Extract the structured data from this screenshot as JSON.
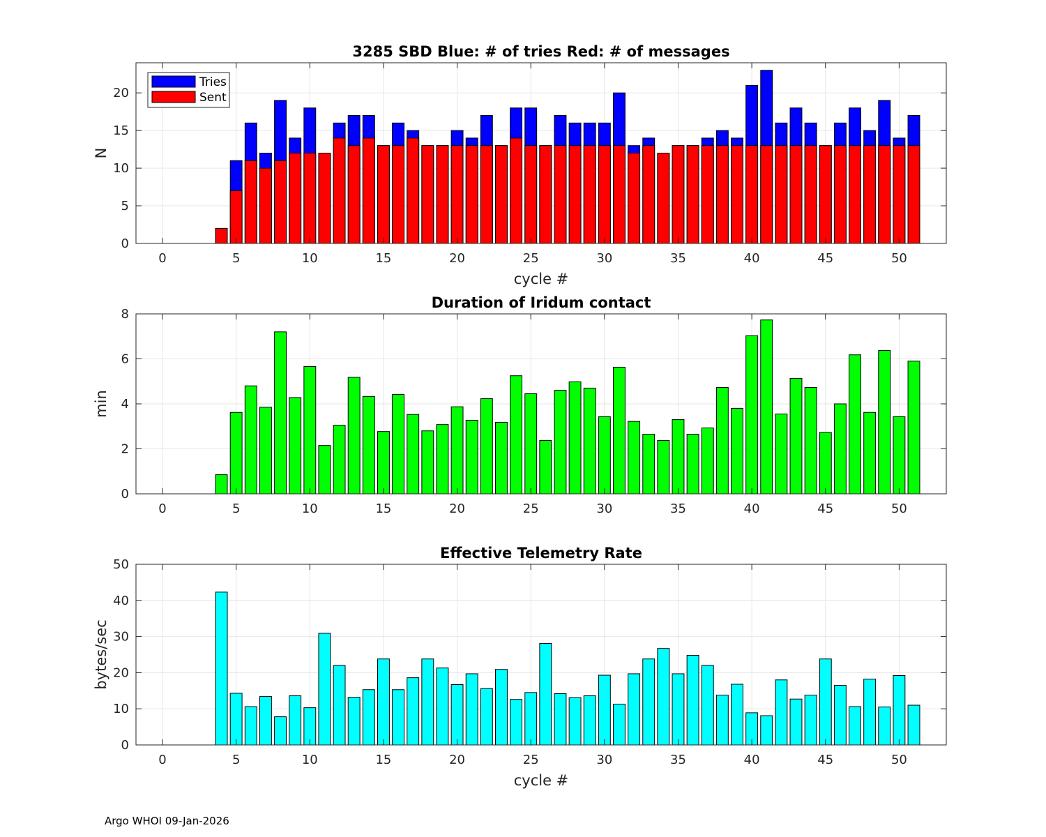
{
  "footer": "Argo WHOI 09-Jan-2026",
  "chart_data": [
    {
      "type": "bar",
      "title": "3285 SBD  Blue: # of tries   Red: # of messages",
      "xlabel": "cycle #",
      "ylabel": "N",
      "xlim": [
        -1.8,
        53.2
      ],
      "ylim": [
        0,
        24
      ],
      "xticks": [
        0,
        5,
        10,
        15,
        20,
        25,
        30,
        35,
        40,
        45,
        50
      ],
      "yticks": [
        0,
        5,
        10,
        15,
        20
      ],
      "grid": true,
      "legend": {
        "position": "top-left",
        "entries": [
          "Tries",
          "Sent"
        ]
      },
      "x": [
        4,
        5,
        6,
        7,
        8,
        9,
        10,
        11,
        12,
        13,
        14,
        15,
        16,
        17,
        18,
        19,
        20,
        21,
        22,
        23,
        24,
        25,
        26,
        27,
        28,
        29,
        30,
        31,
        32,
        33,
        34,
        35,
        36,
        37,
        38,
        39,
        40,
        41,
        42,
        43,
        44,
        45,
        46,
        47,
        48,
        49,
        50,
        51
      ],
      "series": [
        {
          "name": "Tries",
          "color": "#0000ff",
          "values": [
            2,
            11,
            16,
            12,
            19,
            14,
            18,
            12,
            16,
            17,
            17,
            13,
            16,
            15,
            13,
            13,
            15,
            14,
            17,
            13,
            18,
            18,
            13,
            17,
            16,
            16,
            16,
            20,
            13,
            14,
            12,
            13,
            13,
            14,
            15,
            14,
            21,
            23,
            16,
            18,
            16,
            13,
            16,
            18,
            15,
            19,
            14,
            17
          ]
        },
        {
          "name": "Sent",
          "color": "#ff0000",
          "values": [
            2,
            7,
            11,
            10,
            11,
            12,
            12,
            12,
            14,
            13,
            14,
            13,
            13,
            14,
            13,
            13,
            13,
            13,
            13,
            13,
            14,
            13,
            13,
            13,
            13,
            13,
            13,
            13,
            12,
            13,
            12,
            13,
            13,
            13,
            13,
            13,
            13,
            13,
            13,
            13,
            13,
            13,
            13,
            13,
            13,
            13,
            13,
            13
          ]
        }
      ]
    },
    {
      "type": "bar",
      "title": "Duration of Iridum contact",
      "xlabel": "",
      "ylabel": "min",
      "xlim": [
        -1.8,
        53.2
      ],
      "ylim": [
        0,
        8
      ],
      "xticks": [
        0,
        5,
        10,
        15,
        20,
        25,
        30,
        35,
        40,
        45,
        50
      ],
      "yticks": [
        0,
        2,
        4,
        6,
        8
      ],
      "grid": true,
      "x": [
        -1,
        4,
        5,
        6,
        7,
        8,
        9,
        10,
        11,
        12,
        13,
        14,
        15,
        16,
        17,
        18,
        19,
        20,
        21,
        22,
        23,
        24,
        25,
        26,
        27,
        28,
        29,
        30,
        31,
        32,
        33,
        34,
        35,
        36,
        37,
        38,
        39,
        40,
        41,
        42,
        43,
        44,
        45,
        46,
        47,
        48,
        49,
        50,
        51
      ],
      "series": [
        {
          "name": "Duration",
          "color": "#00ff00",
          "values": [
            0,
            0.85,
            3.62,
            4.8,
            3.85,
            7.2,
            4.28,
            5.66,
            2.15,
            3.05,
            5.18,
            4.33,
            2.77,
            4.42,
            3.53,
            2.8,
            3.08,
            3.87,
            3.27,
            4.23,
            3.18,
            5.25,
            4.45,
            2.37,
            4.6,
            4.98,
            4.7,
            3.43,
            5.63,
            3.22,
            2.65,
            2.37,
            3.3,
            2.65,
            2.93,
            4.73,
            3.8,
            7.03,
            7.73,
            3.55,
            5.13,
            4.73,
            2.73,
            4.0,
            6.18,
            3.62,
            6.37,
            3.43,
            5.9
          ]
        }
      ]
    },
    {
      "type": "bar",
      "title": "Effective Telemetry Rate",
      "xlabel": "cycle #",
      "ylabel": "bytes/sec",
      "xlim": [
        -1.8,
        53.2
      ],
      "ylim": [
        0,
        50
      ],
      "xticks": [
        0,
        5,
        10,
        15,
        20,
        25,
        30,
        35,
        40,
        45,
        50
      ],
      "yticks": [
        0,
        10,
        20,
        30,
        40,
        50
      ],
      "grid": true,
      "x": [
        4,
        5,
        6,
        7,
        8,
        9,
        10,
        11,
        12,
        13,
        14,
        15,
        16,
        17,
        18,
        19,
        20,
        21,
        22,
        23,
        24,
        25,
        26,
        27,
        28,
        29,
        30,
        31,
        32,
        33,
        34,
        35,
        36,
        37,
        38,
        39,
        40,
        41,
        42,
        43,
        44,
        45,
        46,
        47,
        48,
        49,
        50,
        51
      ],
      "series": [
        {
          "name": "Rate",
          "color": "#00ffff",
          "values": [
            42.3,
            14.3,
            10.6,
            13.4,
            7.8,
            13.6,
            10.3,
            30.9,
            22.0,
            13.2,
            15.3,
            23.8,
            15.3,
            18.6,
            23.8,
            21.3,
            16.7,
            19.7,
            15.6,
            20.9,
            12.6,
            14.5,
            28.1,
            14.2,
            13.1,
            13.6,
            19.3,
            11.3,
            19.7,
            23.8,
            26.7,
            19.7,
            24.8,
            22.0,
            13.8,
            16.8,
            8.9,
            8.1,
            18.0,
            12.7,
            13.8,
            23.8,
            16.5,
            10.6,
            18.2,
            10.5,
            19.2,
            11.0
          ]
        }
      ]
    }
  ]
}
